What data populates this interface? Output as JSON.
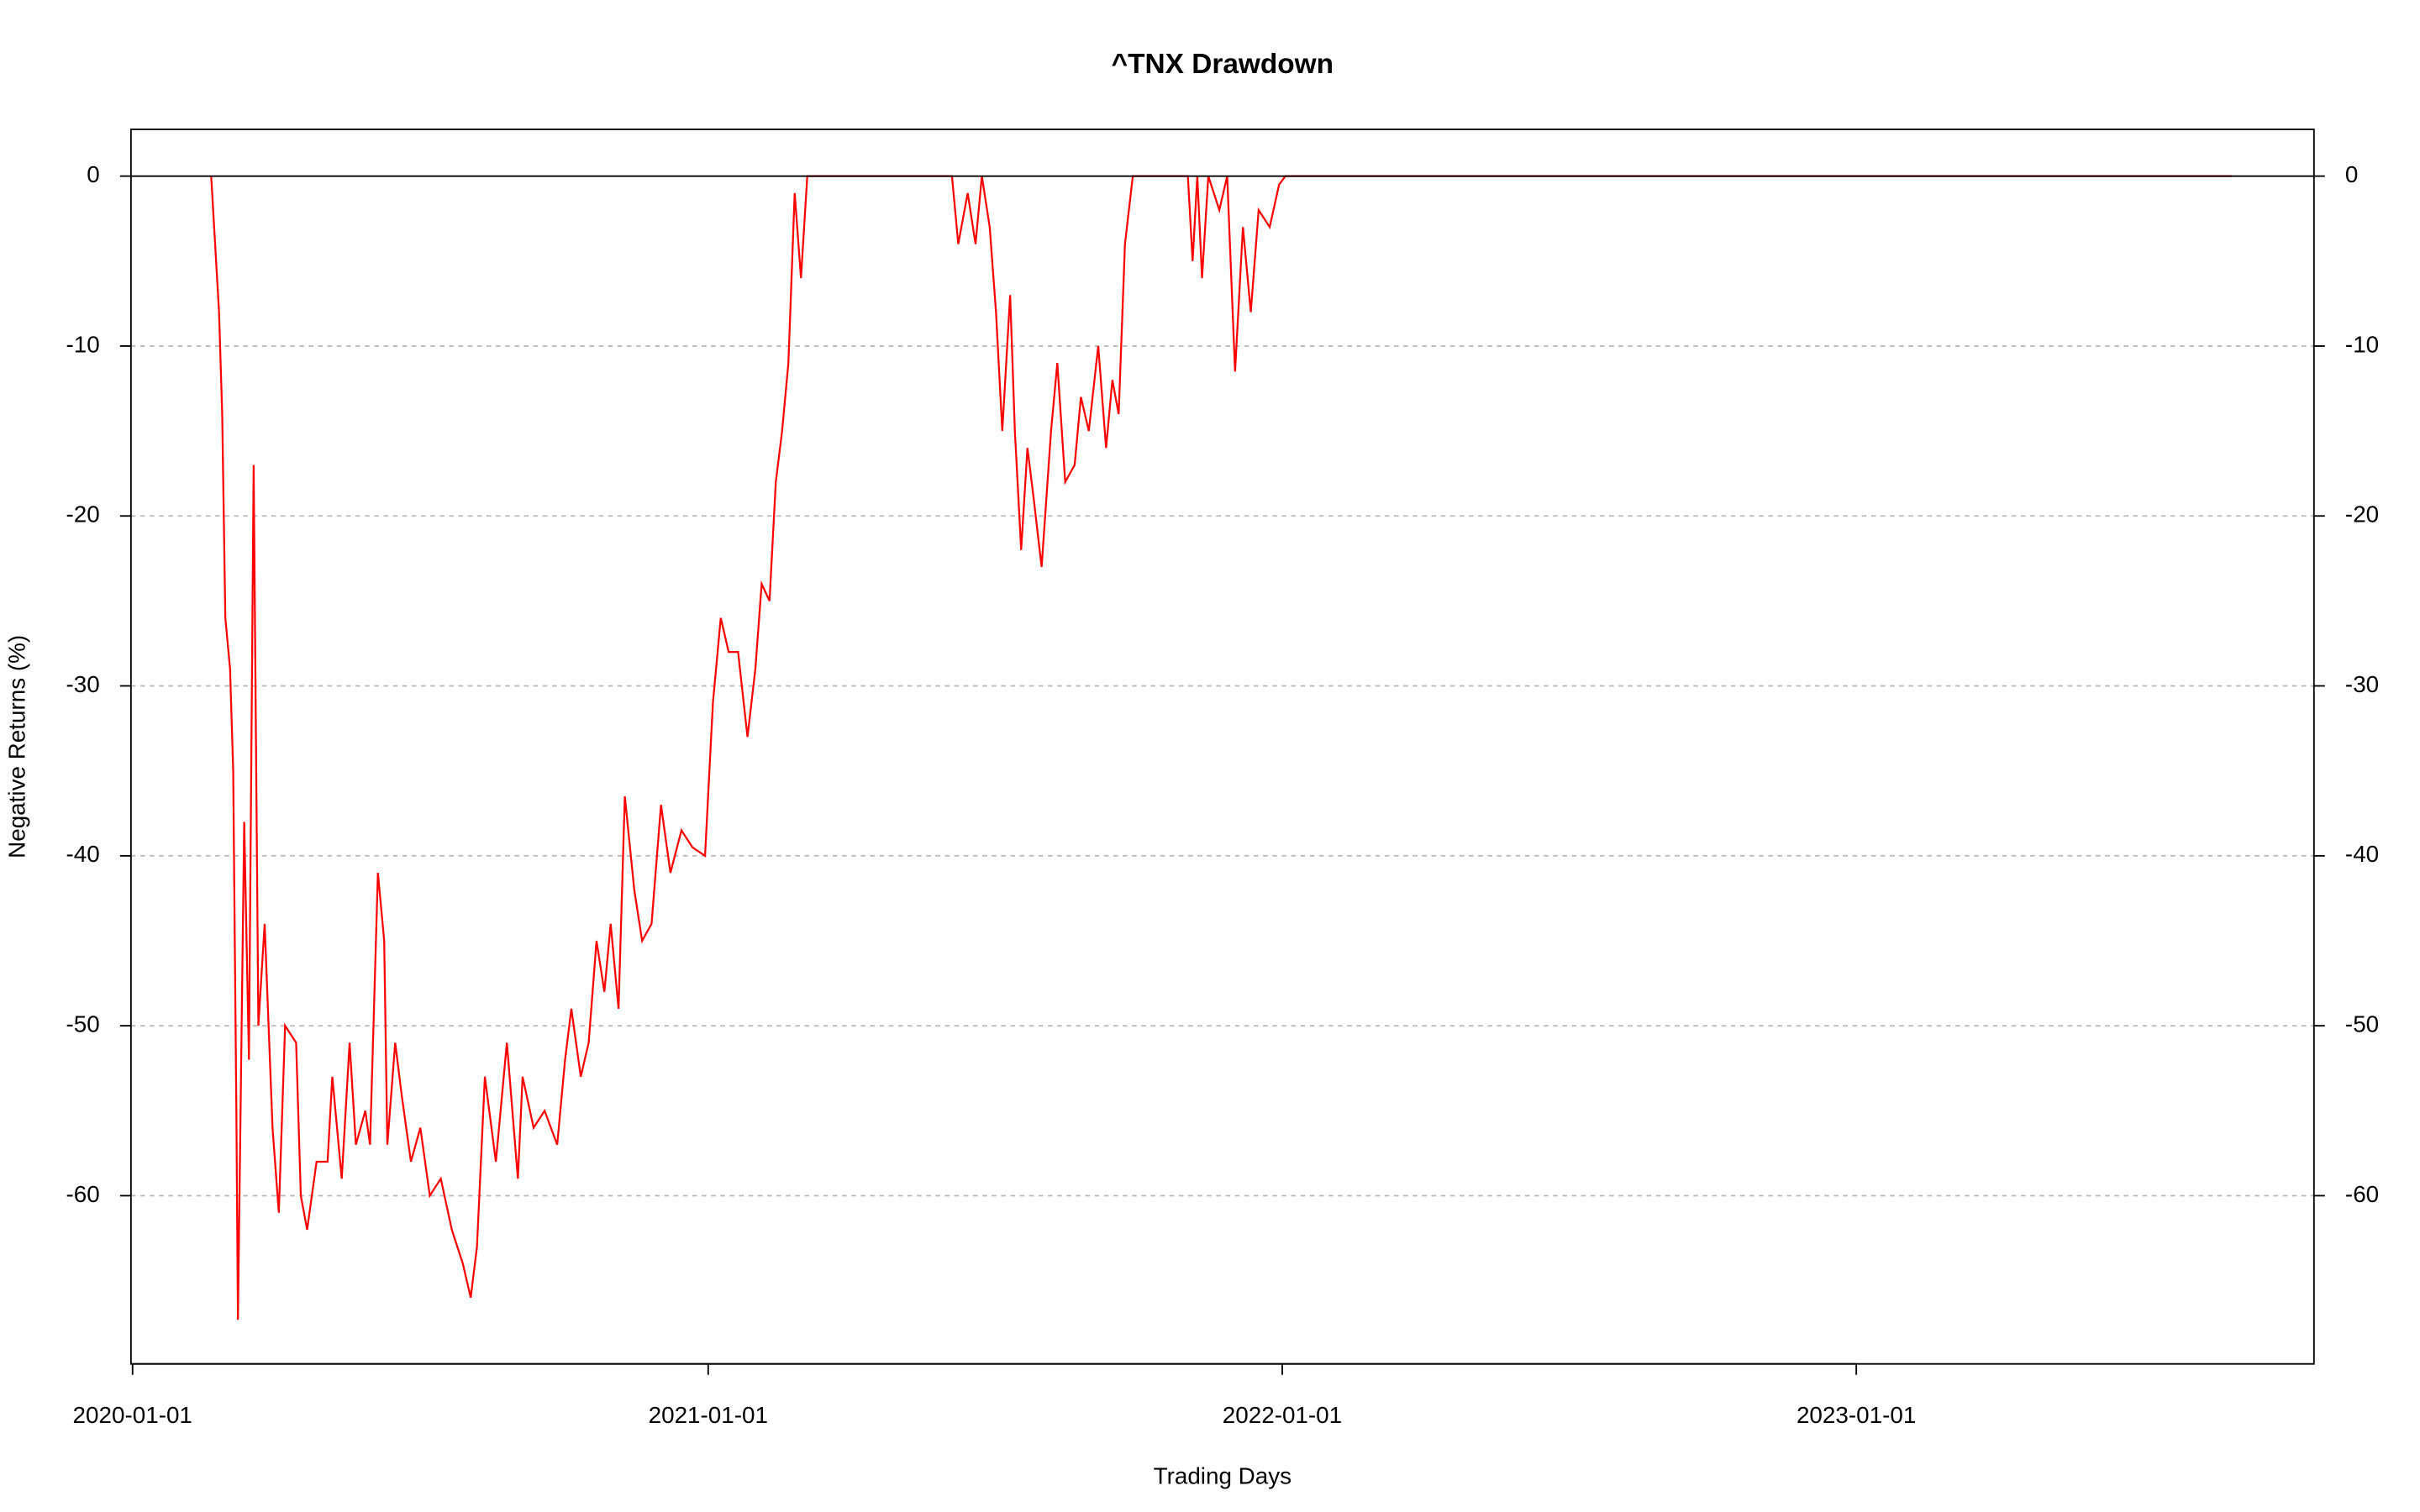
{
  "chart_data": {
    "type": "line",
    "title": "^TNX Drawdown",
    "x_label": "Trading Days",
    "y_label": "Negative Returns (%)",
    "color": "#ff0000",
    "grid": true,
    "right_axis": true,
    "zero_line": true,
    "xlim": [
      "2019-12-31",
      "2023-10-19"
    ],
    "xticks": [
      "2020-01-01",
      "2021-01-01",
      "2022-01-01",
      "2023-01-01"
    ],
    "ylim": [
      -69.9,
      2.75
    ],
    "yticks": [
      0,
      -10,
      -20,
      -30,
      -40,
      -50,
      -60
    ],
    "x": [
      "2020-02-20",
      "2020-02-25",
      "2020-02-27",
      "2020-02-29",
      "2020-03-03",
      "2020-03-05",
      "2020-03-07",
      "2020-03-08",
      "2020-03-12",
      "2020-03-15",
      "2020-03-18",
      "2020-03-21",
      "2020-03-25",
      "2020-03-30",
      "2020-04-03",
      "2020-04-07",
      "2020-04-14",
      "2020-04-17",
      "2020-04-21",
      "2020-04-27",
      "2020-05-04",
      "2020-05-07",
      "2020-05-13",
      "2020-05-18",
      "2020-05-22",
      "2020-05-28",
      "2020-05-31",
      "2020-06-05",
      "2020-06-09",
      "2020-06-11",
      "2020-06-16",
      "2020-06-20",
      "2020-06-26",
      "2020-07-02",
      "2020-07-08",
      "2020-07-15",
      "2020-07-22",
      "2020-07-29",
      "2020-08-03",
      "2020-08-07",
      "2020-08-12",
      "2020-08-19",
      "2020-08-26",
      "2020-09-02",
      "2020-09-05",
      "2020-09-12",
      "2020-09-19",
      "2020-09-27",
      "2020-10-02",
      "2020-10-06",
      "2020-10-12",
      "2020-10-17",
      "2020-10-22",
      "2020-10-27",
      "2020-10-31",
      "2020-11-05",
      "2020-11-09",
      "2020-11-15",
      "2020-11-20",
      "2020-11-26",
      "2020-12-02",
      "2020-12-08",
      "2020-12-15",
      "2020-12-22",
      "2020-12-30",
      "2021-01-04",
      "2021-01-09",
      "2021-01-14",
      "2021-01-20",
      "2021-01-26",
      "2021-01-31",
      "2021-02-04",
      "2021-02-09",
      "2021-02-13",
      "2021-02-17",
      "2021-02-21",
      "2021-02-25",
      "2021-03-01",
      "2021-03-05",
      "2021-06-05",
      "2021-06-09",
      "2021-06-15",
      "2021-06-20",
      "2021-06-24",
      "2021-06-29",
      "2021-07-03",
      "2021-07-07",
      "2021-07-12",
      "2021-07-15",
      "2021-07-19",
      "2021-07-23",
      "2021-07-27",
      "2021-08-01",
      "2021-08-07",
      "2021-08-11",
      "2021-08-16",
      "2021-08-22",
      "2021-08-26",
      "2021-08-31",
      "2021-09-06",
      "2021-09-11",
      "2021-09-15",
      "2021-09-19",
      "2021-09-23",
      "2021-09-28",
      "2021-11-02",
      "2021-11-05",
      "2021-11-08",
      "2021-11-11",
      "2021-11-15",
      "2021-11-22",
      "2021-11-27",
      "2021-12-02",
      "2021-12-07",
      "2021-12-12",
      "2021-12-17",
      "2021-12-24",
      "2021-12-30",
      "2022-01-03",
      "2023-08-28"
    ],
    "values": [
      0,
      -8,
      -14,
      -26,
      -29,
      -35,
      -55,
      -67.3,
      -38,
      -52,
      -17,
      -50,
      -44,
      -56,
      -61,
      -50,
      -51,
      -60,
      -62,
      -58,
      -58,
      -53,
      -59,
      -51,
      -57,
      -55,
      -57,
      -41,
      -45,
      -57,
      -51,
      -54,
      -58,
      -56,
      -60,
      -59,
      -62,
      -64,
      -66,
      -63,
      -53,
      -58,
      -51,
      -59,
      -53,
      -56,
      -55,
      -57,
      -52,
      -49,
      -53,
      -51,
      -45,
      -48,
      -44,
      -49,
      -36.5,
      -42,
      -45,
      -44,
      -37,
      -41,
      -38.5,
      -39.5,
      -40,
      -31,
      -26,
      -28,
      -28,
      -33,
      -29,
      -24,
      -25,
      -18,
      -15,
      -11,
      -1,
      -6,
      0,
      0,
      -4,
      -1,
      -4,
      0,
      -3,
      -8,
      -15,
      -7,
      -15,
      -22,
      -16,
      -19,
      -23,
      -15,
      -11,
      -18,
      -17,
      -13,
      -15,
      -10,
      -16,
      -12,
      -14,
      -4,
      0,
      0,
      -5,
      0,
      -6,
      0,
      -2,
      0,
      -11.5,
      -3,
      -8,
      -2,
      -3,
      -0.5,
      0,
      0
    ]
  }
}
